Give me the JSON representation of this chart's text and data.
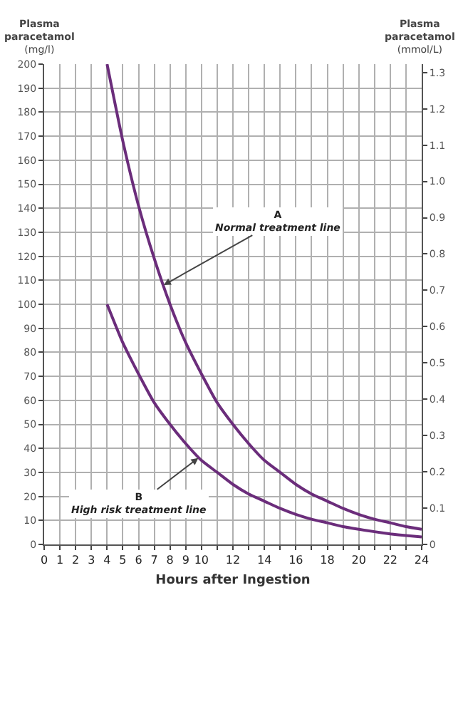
{
  "chart_data": {
    "type": "line",
    "xlabel": "Hours after Ingestion",
    "ylabel": "Plasma\nparacetamol\n(mg/l)",
    "y2label": "Plasma\nparacetamol\n(mmol/L)",
    "x": [
      4,
      5,
      6,
      7,
      8,
      9,
      10,
      11,
      12,
      13,
      14,
      15,
      16,
      17,
      18,
      19,
      20,
      21,
      22,
      23,
      24
    ],
    "series": [
      {
        "color": "#6b2d7b",
        "values": [
          200,
          168,
          141,
          119,
          100,
          84,
          71,
          59,
          50,
          42,
          35,
          30,
          25,
          21,
          18,
          15,
          12.5,
          10.5,
          9,
          7.4,
          6.3
        ]
      },
      {
        "color": "#6b2d7b",
        "values": [
          100,
          84,
          71,
          59,
          50,
          42,
          35,
          30,
          25,
          21,
          18,
          15,
          12.5,
          10.5,
          9,
          7.4,
          6.3,
          5.3,
          4.4,
          3.7,
          3.1
        ]
      }
    ],
    "xlim": [
      0,
      24
    ],
    "xticks": [
      0,
      1,
      2,
      3,
      4,
      5,
      6,
      7,
      8,
      9,
      10,
      {
        "value": 11,
        "label": null
      },
      12,
      {
        "value": 13,
        "label": null
      },
      14,
      {
        "value": 15,
        "label": null
      },
      16,
      {
        "value": 17,
        "label": null
      },
      18,
      {
        "value": 19,
        "label": null
      },
      20,
      {
        "value": 21,
        "label": null
      },
      22,
      {
        "value": 23,
        "label": null
      },
      24
    ],
    "ylim": [
      0,
      200
    ],
    "yticks": [
      0,
      10,
      20,
      30,
      40,
      50,
      60,
      70,
      80,
      90,
      100,
      110,
      120,
      130,
      140,
      150,
      160,
      170,
      180,
      190,
      200
    ],
    "y2lim": [
      0,
      1.323
    ],
    "y2ticks": [
      0,
      0.1,
      0.2,
      0.3,
      0.4,
      0.5,
      0.6,
      0.7,
      0.8,
      0.9,
      {
        "value": 1,
        "label": "1.0"
      },
      1.1,
      1.2,
      1.3
    ],
    "annotations": [
      {
        "text": "A\nNormal treatment line",
        "x": 7.6,
        "y": 108
      },
      {
        "text": "B\nHigh risk treatment line",
        "x": 9.8,
        "y": 36
      }
    ],
    "grid": true,
    "marker": "none",
    "line_style": "solid"
  }
}
